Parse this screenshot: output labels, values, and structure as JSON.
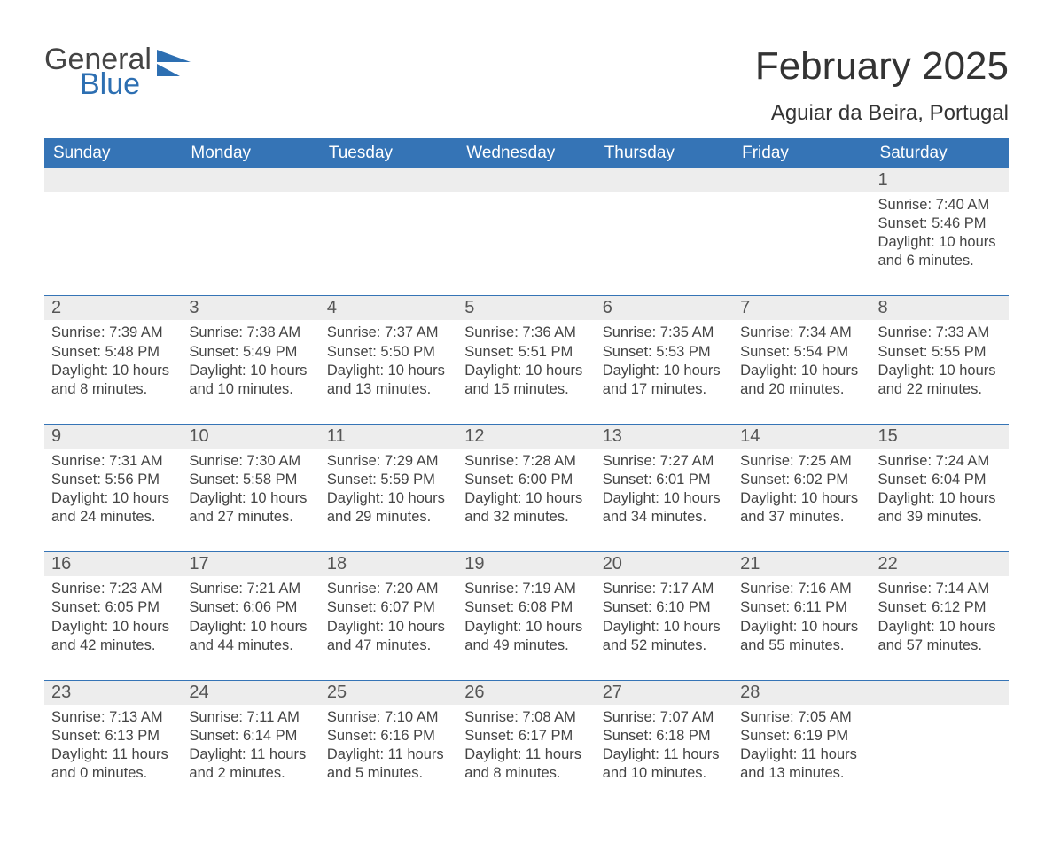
{
  "logo": {
    "word1": "General",
    "word2": "Blue"
  },
  "title": "February 2025",
  "location": "Aguiar da Beira, Portugal",
  "colors": {
    "header_bg": "#3574b6",
    "header_text": "#ffffff",
    "daynum_bg": "#ededed",
    "text": "#333333",
    "logo_blue": "#2d6fb2",
    "rule": "#3574b6"
  },
  "weekdays": [
    "Sunday",
    "Monday",
    "Tuesday",
    "Wednesday",
    "Thursday",
    "Friday",
    "Saturday"
  ],
  "first_weekday_index": 6,
  "days": [
    {
      "n": 1,
      "sunrise": "7:40 AM",
      "sunset": "5:46 PM",
      "daylight": "10 hours and 6 minutes."
    },
    {
      "n": 2,
      "sunrise": "7:39 AM",
      "sunset": "5:48 PM",
      "daylight": "10 hours and 8 minutes."
    },
    {
      "n": 3,
      "sunrise": "7:38 AM",
      "sunset": "5:49 PM",
      "daylight": "10 hours and 10 minutes."
    },
    {
      "n": 4,
      "sunrise": "7:37 AM",
      "sunset": "5:50 PM",
      "daylight": "10 hours and 13 minutes."
    },
    {
      "n": 5,
      "sunrise": "7:36 AM",
      "sunset": "5:51 PM",
      "daylight": "10 hours and 15 minutes."
    },
    {
      "n": 6,
      "sunrise": "7:35 AM",
      "sunset": "5:53 PM",
      "daylight": "10 hours and 17 minutes."
    },
    {
      "n": 7,
      "sunrise": "7:34 AM",
      "sunset": "5:54 PM",
      "daylight": "10 hours and 20 minutes."
    },
    {
      "n": 8,
      "sunrise": "7:33 AM",
      "sunset": "5:55 PM",
      "daylight": "10 hours and 22 minutes."
    },
    {
      "n": 9,
      "sunrise": "7:31 AM",
      "sunset": "5:56 PM",
      "daylight": "10 hours and 24 minutes."
    },
    {
      "n": 10,
      "sunrise": "7:30 AM",
      "sunset": "5:58 PM",
      "daylight": "10 hours and 27 minutes."
    },
    {
      "n": 11,
      "sunrise": "7:29 AM",
      "sunset": "5:59 PM",
      "daylight": "10 hours and 29 minutes."
    },
    {
      "n": 12,
      "sunrise": "7:28 AM",
      "sunset": "6:00 PM",
      "daylight": "10 hours and 32 minutes."
    },
    {
      "n": 13,
      "sunrise": "7:27 AM",
      "sunset": "6:01 PM",
      "daylight": "10 hours and 34 minutes."
    },
    {
      "n": 14,
      "sunrise": "7:25 AM",
      "sunset": "6:02 PM",
      "daylight": "10 hours and 37 minutes."
    },
    {
      "n": 15,
      "sunrise": "7:24 AM",
      "sunset": "6:04 PM",
      "daylight": "10 hours and 39 minutes."
    },
    {
      "n": 16,
      "sunrise": "7:23 AM",
      "sunset": "6:05 PM",
      "daylight": "10 hours and 42 minutes."
    },
    {
      "n": 17,
      "sunrise": "7:21 AM",
      "sunset": "6:06 PM",
      "daylight": "10 hours and 44 minutes."
    },
    {
      "n": 18,
      "sunrise": "7:20 AM",
      "sunset": "6:07 PM",
      "daylight": "10 hours and 47 minutes."
    },
    {
      "n": 19,
      "sunrise": "7:19 AM",
      "sunset": "6:08 PM",
      "daylight": "10 hours and 49 minutes."
    },
    {
      "n": 20,
      "sunrise": "7:17 AM",
      "sunset": "6:10 PM",
      "daylight": "10 hours and 52 minutes."
    },
    {
      "n": 21,
      "sunrise": "7:16 AM",
      "sunset": "6:11 PM",
      "daylight": "10 hours and 55 minutes."
    },
    {
      "n": 22,
      "sunrise": "7:14 AM",
      "sunset": "6:12 PM",
      "daylight": "10 hours and 57 minutes."
    },
    {
      "n": 23,
      "sunrise": "7:13 AM",
      "sunset": "6:13 PM",
      "daylight": "11 hours and 0 minutes."
    },
    {
      "n": 24,
      "sunrise": "7:11 AM",
      "sunset": "6:14 PM",
      "daylight": "11 hours and 2 minutes."
    },
    {
      "n": 25,
      "sunrise": "7:10 AM",
      "sunset": "6:16 PM",
      "daylight": "11 hours and 5 minutes."
    },
    {
      "n": 26,
      "sunrise": "7:08 AM",
      "sunset": "6:17 PM",
      "daylight": "11 hours and 8 minutes."
    },
    {
      "n": 27,
      "sunrise": "7:07 AM",
      "sunset": "6:18 PM",
      "daylight": "11 hours and 10 minutes."
    },
    {
      "n": 28,
      "sunrise": "7:05 AM",
      "sunset": "6:19 PM",
      "daylight": "11 hours and 13 minutes."
    }
  ],
  "labels": {
    "sunrise": "Sunrise:",
    "sunset": "Sunset:",
    "daylight": "Daylight:"
  }
}
